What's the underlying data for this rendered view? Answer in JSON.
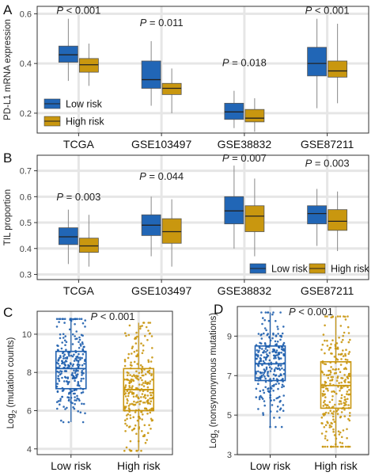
{
  "colors": {
    "low": "#1f5fae",
    "high": "#c9960f",
    "low_fill": "#2166b6",
    "high_fill": "#c9970f",
    "panel_bg": "#ffffff",
    "grid": "#e6e6e6",
    "border": "#333333"
  },
  "legend_labels": {
    "low": "Low risk",
    "high": "High risk"
  },
  "chart_data": [
    {
      "panel": "A",
      "type": "box",
      "ylabel": "PD-L1 mRNA expression",
      "ylim": [
        0.12,
        0.63
      ],
      "yticks": [
        0.2,
        0.4,
        0.6
      ],
      "ytick_labels": [
        "0.2",
        "0.4",
        "0.6"
      ],
      "grid": true,
      "legend": "bottom-left",
      "categories": [
        "TCGA",
        "GSE103497",
        "GSE38832",
        "GSE87211"
      ],
      "pvalues": [
        "P < 0.001",
        "P = 0.011",
        "P = 0.018",
        "P < 0.001"
      ],
      "pvalue_y": [
        0.6,
        0.55,
        0.39,
        0.6
      ],
      "series": [
        {
          "name": "Low risk",
          "group": "low",
          "boxes": [
            {
              "min": 0.33,
              "q1": 0.405,
              "median": 0.435,
              "q3": 0.47,
              "max": 0.58
            },
            {
              "min": 0.23,
              "q1": 0.3,
              "median": 0.335,
              "q3": 0.41,
              "max": 0.49
            },
            {
              "min": 0.14,
              "q1": 0.175,
              "median": 0.205,
              "q3": 0.24,
              "max": 0.29
            },
            {
              "min": 0.22,
              "q1": 0.35,
              "median": 0.4,
              "q3": 0.465,
              "max": 0.58
            }
          ]
        },
        {
          "name": "High risk",
          "group": "high",
          "boxes": [
            {
              "min": 0.31,
              "q1": 0.365,
              "median": 0.395,
              "q3": 0.42,
              "max": 0.48
            },
            {
              "min": 0.2,
              "q1": 0.275,
              "median": 0.3,
              "q3": 0.32,
              "max": 0.38
            },
            {
              "min": 0.125,
              "q1": 0.165,
              "median": 0.18,
              "q3": 0.215,
              "max": 0.26
            },
            {
              "min": 0.24,
              "q1": 0.345,
              "median": 0.37,
              "q3": 0.41,
              "max": 0.56
            }
          ]
        }
      ]
    },
    {
      "panel": "B",
      "type": "box",
      "ylabel": "TIL proportion",
      "ylim": [
        0.28,
        0.76
      ],
      "yticks": [
        0.3,
        0.4,
        0.5,
        0.6,
        0.7
      ],
      "ytick_labels": [
        "0.3",
        "0.4",
        "0.5",
        "0.6",
        "0.7"
      ],
      "grid": true,
      "legend": "bottom-right",
      "categories": [
        "TCGA",
        "GSE103497",
        "GSE38832",
        "GSE87211"
      ],
      "pvalues": [
        "P = 0.003",
        "P = 0.044",
        "P = 0.007",
        "P = 0.003"
      ],
      "pvalue_y": [
        0.585,
        0.665,
        0.735,
        0.715
      ],
      "series": [
        {
          "name": "Low risk",
          "group": "low",
          "boxes": [
            {
              "min": 0.34,
              "q1": 0.415,
              "median": 0.445,
              "q3": 0.48,
              "max": 0.55
            },
            {
              "min": 0.37,
              "q1": 0.45,
              "median": 0.49,
              "q3": 0.53,
              "max": 0.6
            },
            {
              "min": 0.4,
              "q1": 0.495,
              "median": 0.545,
              "q3": 0.6,
              "max": 0.72
            },
            {
              "min": 0.41,
              "q1": 0.495,
              "median": 0.535,
              "q3": 0.565,
              "max": 0.63
            }
          ]
        },
        {
          "name": "High risk",
          "group": "high",
          "boxes": [
            {
              "min": 0.33,
              "q1": 0.385,
              "median": 0.41,
              "q3": 0.44,
              "max": 0.53
            },
            {
              "min": 0.33,
              "q1": 0.42,
              "median": 0.465,
              "q3": 0.515,
              "max": 0.59
            },
            {
              "min": 0.37,
              "q1": 0.465,
              "median": 0.525,
              "q3": 0.565,
              "max": 0.67
            },
            {
              "min": 0.39,
              "q1": 0.47,
              "median": 0.505,
              "q3": 0.55,
              "max": 0.62
            }
          ]
        }
      ]
    },
    {
      "panel": "C",
      "type": "box",
      "ylabel": "Log2 (mutation counts)",
      "ylabel_main": "Log",
      "ylabel_sub": "2",
      "ylabel_rest": " (mutation counts)",
      "ylim": [
        3.7,
        11.2
      ],
      "yticks": [
        4,
        6,
        8,
        10
      ],
      "ytick_labels": [
        "4",
        "6",
        "8",
        "10"
      ],
      "grid": true,
      "categories": [
        "Low risk",
        "High risk"
      ],
      "pvalues": [
        "P < 0.001"
      ],
      "pvalue_y": [
        10.75
      ],
      "jitter": true,
      "boxes": [
        {
          "group": "low",
          "min": 5.4,
          "q1": 7.15,
          "median": 8.2,
          "q3": 9.1,
          "max": 10.8
        },
        {
          "group": "high",
          "min": 3.9,
          "q1": 6.0,
          "median": 7.1,
          "q3": 8.2,
          "max": 10.6
        }
      ]
    },
    {
      "panel": "D",
      "type": "box",
      "ylabel": "Log2 (nonsynonymous mutations)",
      "ylabel_main": "Log",
      "ylabel_sub": "2",
      "ylabel_rest": " (nonsynonymous mutations)",
      "ylim": [
        3.0,
        10.5
      ],
      "yticks": [
        3,
        5,
        7,
        9
      ],
      "ytick_labels": [
        "3",
        "5",
        "7",
        "9"
      ],
      "grid": true,
      "categories": [
        "Low risk",
        "High risk"
      ],
      "pvalues": [
        "P < 0.001"
      ],
      "pvalue_y": [
        10.05
      ],
      "jitter": true,
      "boxes": [
        {
          "group": "low",
          "min": 4.4,
          "q1": 6.75,
          "median": 7.6,
          "q3": 8.5,
          "max": 10.2
        },
        {
          "group": "high",
          "min": 3.4,
          "q1": 5.35,
          "median": 6.5,
          "q3": 7.7,
          "max": 10.0
        }
      ]
    }
  ]
}
